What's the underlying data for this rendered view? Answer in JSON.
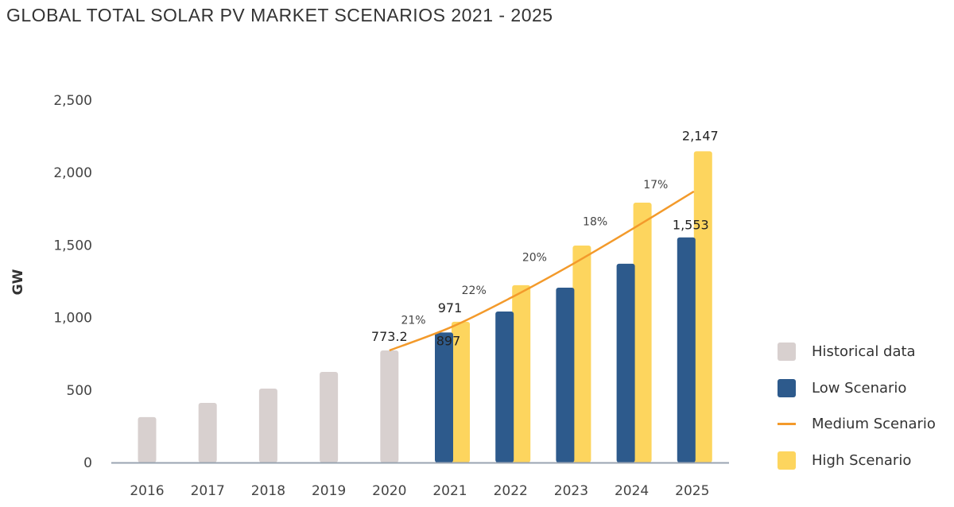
{
  "title": "GLOBAL TOTAL SOLAR PV MARKET SCENARIOS 2021 - 2025",
  "colors": {
    "historical": "#d8d0cf",
    "low": "#2d5a8c",
    "medium": "#f39a2b",
    "high": "#fdd55e",
    "axis": "#9aa4b2"
  },
  "legend": [
    {
      "label": "Historical data",
      "key": "historical",
      "shape": "square"
    },
    {
      "label": "Low Scenario",
      "key": "low",
      "shape": "square"
    },
    {
      "label": "Medium Scenario",
      "key": "medium",
      "shape": "line"
    },
    {
      "label": "High Scenario",
      "key": "high",
      "shape": "square"
    }
  ],
  "chart_data": {
    "type": "bar",
    "title": "GLOBAL TOTAL SOLAR PV MARKET SCENARIOS 2021 - 2025",
    "xlabel": "",
    "ylabel": "GW",
    "ylim": [
      0,
      2500
    ],
    "yticks": [
      0,
      500,
      1000,
      1500,
      2000,
      2500
    ],
    "ytick_labels": [
      "0",
      "500",
      "1,000",
      "1,500",
      "2,000",
      "2,500"
    ],
    "categories": [
      "2016",
      "2017",
      "2018",
      "2019",
      "2020",
      "2021",
      "2022",
      "2023",
      "2024",
      "2025"
    ],
    "grid": false,
    "legend_position": "right",
    "series": [
      {
        "name": "Historical data",
        "type": "bar",
        "values": [
          313,
          411,
          510,
          625,
          773.2,
          null,
          null,
          null,
          null,
          null
        ]
      },
      {
        "name": "Low Scenario",
        "type": "bar",
        "values": [
          null,
          null,
          null,
          null,
          null,
          897,
          1042,
          1206,
          1371,
          1553
        ]
      },
      {
        "name": "High Scenario",
        "type": "bar",
        "values": [
          null,
          null,
          null,
          null,
          null,
          971,
          1223,
          1497,
          1793,
          2147
        ]
      },
      {
        "name": "Medium Scenario",
        "type": "line",
        "values": [
          null,
          null,
          null,
          null,
          773.2,
          935,
          1141,
          1369,
          1615,
          1870
        ]
      }
    ],
    "data_labels": [
      {
        "category": "2020",
        "series": "Historical data",
        "text": "773.2"
      },
      {
        "category": "2021",
        "series": "Low Scenario",
        "text": "897"
      },
      {
        "category": "2021",
        "series": "High Scenario",
        "text": "971"
      },
      {
        "category": "2025",
        "series": "Low Scenario",
        "text": "1,553"
      },
      {
        "category": "2025",
        "series": "High Scenario",
        "text": "2,147"
      }
    ],
    "growth_annotations": [
      {
        "category": "2021",
        "text": "21%"
      },
      {
        "category": "2022",
        "text": "22%"
      },
      {
        "category": "2023",
        "text": "20%"
      },
      {
        "category": "2024",
        "text": "18%"
      },
      {
        "category": "2025",
        "text": "17%"
      }
    ]
  }
}
